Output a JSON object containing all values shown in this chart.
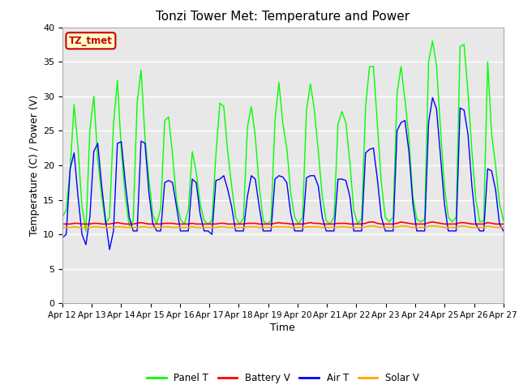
{
  "title": "Tonzi Tower Met: Temperature and Power",
  "xlabel": "Time",
  "ylabel": "Temperature (C) / Power (V)",
  "ylim": [
    0,
    40
  ],
  "yticks": [
    0,
    5,
    10,
    15,
    20,
    25,
    30,
    35,
    40
  ],
  "x_labels": [
    "Apr 12",
    "Apr 13",
    "Apr 14",
    "Apr 15",
    "Apr 16",
    "Apr 17",
    "Apr 18",
    "Apr 19",
    "Apr 20",
    "Apr 21",
    "Apr 22",
    "Apr 23",
    "Apr 24",
    "Apr 25",
    "Apr 26",
    "Apr 27"
  ],
  "annotation_text": "TZ_tmet",
  "annotation_box_facecolor": "#FFFFCC",
  "annotation_box_edgecolor": "#CC0000",
  "annotation_text_color": "#CC0000",
  "panel_t_color": "#00FF00",
  "battery_v_color": "#FF0000",
  "air_t_color": "#0000FF",
  "solar_v_color": "#FFA500",
  "bg_color": "#E8E8E8",
  "fig_facecolor": "#FFFFFF",
  "legend_labels": [
    "Panel T",
    "Battery V",
    "Air T",
    "Solar V"
  ],
  "panel_t": [
    12.5,
    13.5,
    19.5,
    28.8,
    22.5,
    14.0,
    10.5,
    25.0,
    30.0,
    21.0,
    15.5,
    11.5,
    12.5,
    26.0,
    32.3,
    22.0,
    15.5,
    11.2,
    12.0,
    29.0,
    33.8,
    24.0,
    18.0,
    12.8,
    11.5,
    13.8,
    26.5,
    27.0,
    21.5,
    15.0,
    12.2,
    11.5,
    13.5,
    22.0,
    19.0,
    14.5,
    12.0,
    11.5,
    12.0,
    21.5,
    29.0,
    28.5,
    22.0,
    17.0,
    12.5,
    11.5,
    12.3,
    25.5,
    28.5,
    24.2,
    17.0,
    12.0,
    11.5,
    12.0,
    26.5,
    32.0,
    26.0,
    22.5,
    16.0,
    12.5,
    11.5,
    12.5,
    28.0,
    31.8,
    28.0,
    22.0,
    15.5,
    12.0,
    11.5,
    12.5,
    26.0,
    27.8,
    26.2,
    20.5,
    13.5,
    11.5,
    12.3,
    28.5,
    34.3,
    34.3,
    26.0,
    17.5,
    12.5,
    11.8,
    12.5,
    30.5,
    34.3,
    29.5,
    24.0,
    15.5,
    12.2,
    11.8,
    12.2,
    35.0,
    38.0,
    34.5,
    25.5,
    17.0,
    12.5,
    11.8,
    12.5,
    37.2,
    37.5,
    30.5,
    22.0,
    15.0,
    11.8,
    12.0,
    35.0,
    24.5,
    20.0,
    14.5,
    12.0
  ],
  "battery_v": [
    11.5,
    11.5,
    11.5,
    11.6,
    11.6,
    11.5,
    11.5,
    11.5,
    11.6,
    11.6,
    11.5,
    11.5,
    11.5,
    11.6,
    11.7,
    11.6,
    11.5,
    11.5,
    11.5,
    11.6,
    11.7,
    11.6,
    11.5,
    11.5,
    11.5,
    11.5,
    11.6,
    11.6,
    11.6,
    11.5,
    11.5,
    11.5,
    11.5,
    11.6,
    11.5,
    11.5,
    11.5,
    11.5,
    11.5,
    11.5,
    11.6,
    11.6,
    11.5,
    11.5,
    11.5,
    11.5,
    11.5,
    11.6,
    11.6,
    11.6,
    11.5,
    11.5,
    11.5,
    11.5,
    11.6,
    11.7,
    11.6,
    11.6,
    11.5,
    11.5,
    11.5,
    11.5,
    11.6,
    11.7,
    11.6,
    11.6,
    11.5,
    11.5,
    11.5,
    11.5,
    11.6,
    11.6,
    11.6,
    11.5,
    11.5,
    11.5,
    11.5,
    11.6,
    11.8,
    11.8,
    11.6,
    11.5,
    11.5,
    11.5,
    11.5,
    11.6,
    11.8,
    11.7,
    11.6,
    11.5,
    11.5,
    11.5,
    11.5,
    11.7,
    11.8,
    11.7,
    11.6,
    11.5,
    11.5,
    11.5,
    11.5,
    11.7,
    11.7,
    11.6,
    11.5,
    11.5,
    11.5,
    11.5,
    11.7,
    11.6,
    11.5,
    11.5,
    11.5
  ],
  "air_t": [
    9.5,
    10.0,
    19.5,
    21.8,
    15.5,
    10.0,
    8.5,
    12.5,
    22.0,
    23.2,
    17.0,
    12.0,
    7.8,
    10.5,
    23.2,
    23.4,
    17.5,
    12.5,
    10.5,
    10.5,
    23.5,
    23.2,
    16.0,
    11.5,
    10.5,
    10.5,
    17.5,
    17.8,
    17.5,
    14.0,
    10.5,
    10.5,
    10.5,
    18.0,
    17.5,
    13.0,
    10.5,
    10.5,
    10.0,
    17.8,
    18.0,
    18.5,
    16.5,
    14.0,
    10.5,
    10.5,
    10.5,
    15.5,
    18.5,
    18.0,
    14.0,
    10.5,
    10.5,
    10.5,
    18.0,
    18.5,
    18.3,
    17.5,
    13.0,
    10.5,
    10.5,
    10.5,
    18.2,
    18.5,
    18.5,
    17.0,
    12.5,
    10.5,
    10.5,
    10.5,
    18.0,
    18.0,
    17.8,
    15.5,
    10.5,
    10.5,
    10.5,
    21.8,
    22.3,
    22.5,
    18.0,
    12.5,
    10.5,
    10.5,
    10.5,
    25.0,
    26.2,
    26.5,
    22.0,
    14.5,
    10.5,
    10.5,
    10.5,
    26.2,
    29.8,
    28.2,
    21.5,
    14.5,
    10.5,
    10.5,
    10.5,
    28.3,
    28.0,
    24.5,
    17.0,
    11.5,
    10.5,
    10.5,
    19.5,
    19.2,
    16.5,
    11.5,
    10.5
  ],
  "solar_v": [
    11.0,
    11.0,
    11.0,
    11.1,
    11.0,
    11.0,
    11.0,
    11.0,
    11.1,
    11.1,
    11.0,
    11.0,
    11.0,
    11.0,
    11.1,
    11.1,
    11.0,
    11.0,
    11.0,
    11.0,
    11.1,
    11.1,
    11.0,
    11.0,
    11.0,
    11.0,
    11.1,
    11.1,
    11.0,
    11.0,
    11.0,
    11.0,
    11.0,
    11.1,
    11.0,
    11.0,
    11.0,
    11.0,
    11.0,
    11.0,
    11.1,
    11.1,
    11.0,
    11.0,
    11.0,
    11.0,
    11.0,
    11.1,
    11.1,
    11.1,
    11.0,
    11.0,
    11.0,
    11.0,
    11.1,
    11.1,
    11.1,
    11.1,
    11.0,
    11.0,
    11.0,
    11.0,
    11.1,
    11.1,
    11.1,
    11.1,
    11.0,
    11.0,
    11.0,
    11.0,
    11.1,
    11.1,
    11.1,
    11.0,
    11.0,
    11.0,
    11.0,
    11.1,
    11.2,
    11.2,
    11.1,
    11.0,
    11.0,
    11.0,
    11.0,
    11.1,
    11.2,
    11.2,
    11.1,
    11.0,
    11.0,
    11.0,
    11.0,
    11.2,
    11.2,
    11.2,
    11.1,
    11.0,
    11.0,
    11.0,
    11.0,
    11.2,
    11.2,
    11.1,
    11.0,
    11.0,
    11.0,
    11.0,
    11.2,
    11.1,
    11.0,
    11.0,
    11.0
  ]
}
